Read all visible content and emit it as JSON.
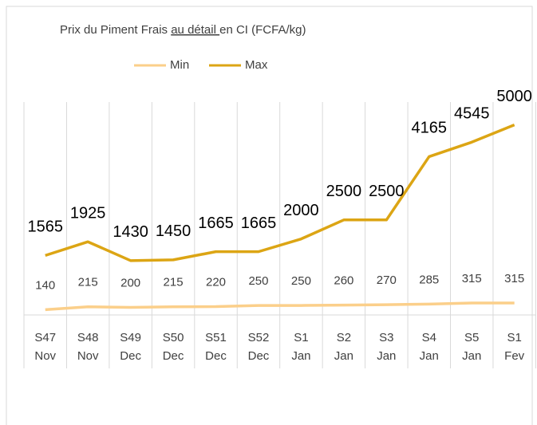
{
  "chart_data": {
    "type": "line",
    "title_parts": [
      "Prix du Piment Frais ",
      "au détail ",
      "en CI (FCFA/kg)"
    ],
    "categories": [
      "S47",
      "S48",
      "S49",
      "S50",
      "S51",
      "S52",
      "S1",
      "S2",
      "S3",
      "S4",
      "S5",
      "S1"
    ],
    "category_groups": [
      "Nov",
      "Nov",
      "Dec",
      "Dec",
      "Dec",
      "Dec",
      "Jan",
      "Jan",
      "Jan",
      "Jan",
      "Jan",
      "Fev"
    ],
    "series": [
      {
        "name": "Min",
        "color": "#fbcf8a",
        "values": [
          140,
          215,
          200,
          215,
          220,
          250,
          250,
          260,
          270,
          285,
          315,
          315
        ]
      },
      {
        "name": "Max",
        "color": "#dca514",
        "values": [
          1565,
          1925,
          1430,
          1450,
          1665,
          1665,
          2000,
          2500,
          2500,
          4165,
          4545,
          5000
        ]
      }
    ],
    "ylim": [
      0,
      5600
    ]
  }
}
